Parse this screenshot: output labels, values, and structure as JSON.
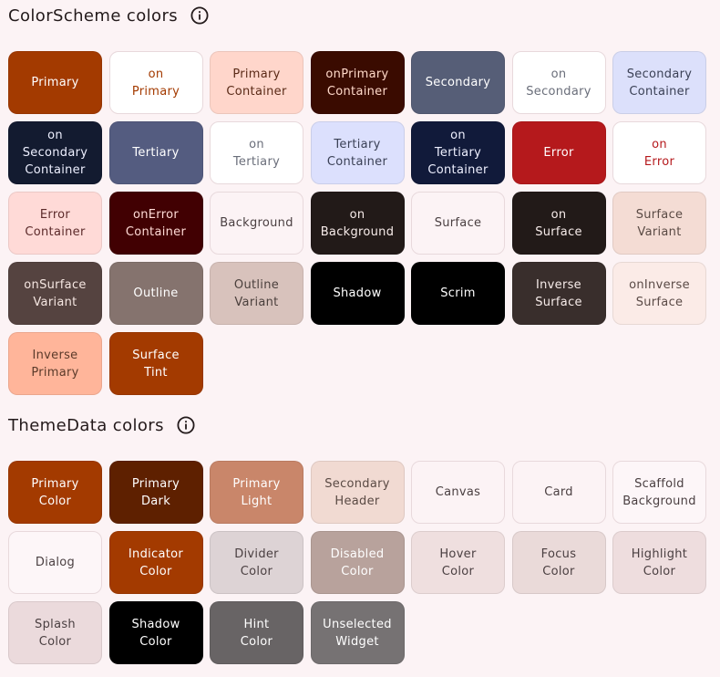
{
  "color_scheme": {
    "title": "ColorScheme colors",
    "swatches": [
      {
        "label": "Primary",
        "bg": "#a33a00",
        "fg": "#ffffff"
      },
      {
        "label": "on\nPrimary",
        "bg": "#ffffff",
        "fg": "#a33a00"
      },
      {
        "label": "Primary\nContainer",
        "bg": "#ffd6cb",
        "fg": "#5a2a17"
      },
      {
        "label": "onPrimary\nContainer",
        "bg": "#3a0b00",
        "fg": "#ffd9c9"
      },
      {
        "label": "Secondary",
        "bg": "#565e77",
        "fg": "#ffffff"
      },
      {
        "label": "on\nSecondary",
        "bg": "#ffffff",
        "fg": "#6a6e7a"
      },
      {
        "label": "Secondary\nContainer",
        "bg": "#dce0fb",
        "fg": "#3b4156"
      },
      {
        "label": "on\nSecondary\nContainer",
        "bg": "#131b30",
        "fg": "#eef0ff"
      },
      {
        "label": "Tertiary",
        "bg": "#545c80",
        "fg": "#ffffff"
      },
      {
        "label": "on\nTertiary",
        "bg": "#ffffff",
        "fg": "#6a6e7a"
      },
      {
        "label": "Tertiary\nContainer",
        "bg": "#dce0fd",
        "fg": "#3b4156"
      },
      {
        "label": "on\nTertiary\nContainer",
        "bg": "#111a3a",
        "fg": "#eef0ff"
      },
      {
        "label": "Error",
        "bg": "#b5191c",
        "fg": "#ffffff"
      },
      {
        "label": "on\nError",
        "bg": "#ffffff",
        "fg": "#b5191c"
      },
      {
        "label": "Error\nContainer",
        "bg": "#ffdad7",
        "fg": "#5b2a2a"
      },
      {
        "label": "onError\nContainer",
        "bg": "#410002",
        "fg": "#ffdad6"
      },
      {
        "label": "Background",
        "bg": "#fcf3f5",
        "fg": "#4a3f41"
      },
      {
        "label": "on\nBackground",
        "bg": "#221a18",
        "fg": "#f7ecea"
      },
      {
        "label": "Surface",
        "bg": "#fcf3f5",
        "fg": "#4a3f41"
      },
      {
        "label": "on\nSurface",
        "bg": "#221a18",
        "fg": "#f7ecea"
      },
      {
        "label": "Surface\nVariant",
        "bg": "#f4dcd4",
        "fg": "#5a4a44"
      },
      {
        "label": "onSurface\nVariant",
        "bg": "#554340",
        "fg": "#f5e6e1"
      },
      {
        "label": "Outline",
        "bg": "#85736e",
        "fg": "#ffffff"
      },
      {
        "label": "Outline\nVariant",
        "bg": "#d8c2bc",
        "fg": "#4a3f3c"
      },
      {
        "label": "Shadow",
        "bg": "#000000",
        "fg": "#ffffff"
      },
      {
        "label": "Scrim",
        "bg": "#000000",
        "fg": "#ffffff"
      },
      {
        "label": "Inverse\nSurface",
        "bg": "#392e2c",
        "fg": "#f7ecea"
      },
      {
        "label": "onInverse\nSurface",
        "bg": "#fbebe7",
        "fg": "#5a4a46"
      },
      {
        "label": "Inverse\nPrimary",
        "bg": "#ffb59a",
        "fg": "#5a3a2a"
      },
      {
        "label": "Surface\nTint",
        "bg": "#a33a00",
        "fg": "#ffffff"
      }
    ]
  },
  "theme_data": {
    "title": "ThemeData colors",
    "swatches": [
      {
        "label": "Primary\nColor",
        "bg": "#a33a00",
        "fg": "#ffffff"
      },
      {
        "label": "Primary\nDark",
        "bg": "#5e2000",
        "fg": "#ffffff"
      },
      {
        "label": "Primary\nLight",
        "bg": "#c9866a",
        "fg": "#ffffff"
      },
      {
        "label": "Secondary\nHeader",
        "bg": "#f1dad2",
        "fg": "#5a4a44"
      },
      {
        "label": "Canvas",
        "bg": "#fcf3f5",
        "fg": "#4a3f41"
      },
      {
        "label": "Card",
        "bg": "#fcf3f5",
        "fg": "#4a3f41"
      },
      {
        "label": "Scaffold\nBackground",
        "bg": "#fdf6f8",
        "fg": "#4a3f41"
      },
      {
        "label": "Dialog",
        "bg": "#fdf6f8",
        "fg": "#4a3f41"
      },
      {
        "label": "Indicator\nColor",
        "bg": "#a33a00",
        "fg": "#ffffff"
      },
      {
        "label": "Divider\nColor",
        "bg": "#ddd3d5",
        "fg": "#4a3f41"
      },
      {
        "label": "Disabled\nColor",
        "bg": "#b8a29c",
        "fg": "#ffffff"
      },
      {
        "label": "Hover\nColor",
        "bg": "#efdfdf",
        "fg": "#4a3f41"
      },
      {
        "label": "Focus\nColor",
        "bg": "#eadad9",
        "fg": "#4a3f41"
      },
      {
        "label": "Highlight\nColor",
        "bg": "#eeddde",
        "fg": "#4a3f41"
      },
      {
        "label": "Splash\nColor",
        "bg": "#ebdadc",
        "fg": "#4a3f41"
      },
      {
        "label": "Shadow\nColor",
        "bg": "#000000",
        "fg": "#ffffff"
      },
      {
        "label": "Hint\nColor",
        "bg": "#686465",
        "fg": "#ffffff"
      },
      {
        "label": "Unselected\nWidget",
        "bg": "#767273",
        "fg": "#ffffff"
      }
    ]
  },
  "icons": {
    "info": "info-icon"
  },
  "colors": {
    "page_bg": "#fcf3f5",
    "title_text": "#231a1b"
  }
}
